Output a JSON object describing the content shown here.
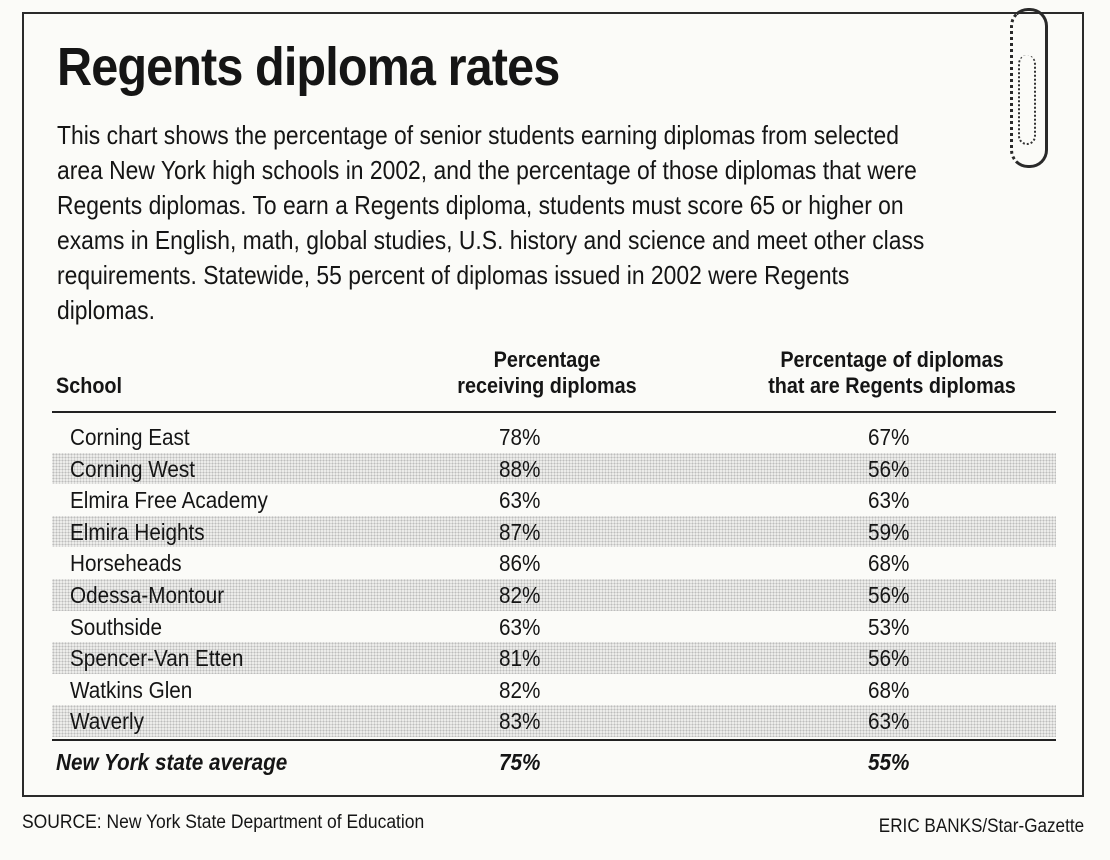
{
  "title": "Regents diploma rates",
  "intro": "This chart shows the percentage of senior students earning diplomas from selected area New York high schools in 2002, and the percentage of those diplomas that were Regents diplomas. To earn a Regents diploma, students must score 65 or higher on exams in English, math, global studies, U.S. history and science and meet other class requirements. Statewide, 55 percent of diplomas issued in 2002 were Regents diplomas.",
  "table": {
    "headers": {
      "school": "School",
      "rate_line1": "Percentage",
      "rate_line2": "receiving diplomas",
      "regents_line1": "Percentage of diplomas",
      "regents_line2": "that are Regents diplomas"
    },
    "rows": [
      {
        "school": "Corning East",
        "rate": "78%",
        "regents": "67%"
      },
      {
        "school": "Corning West",
        "rate": "88%",
        "regents": "56%"
      },
      {
        "school": "Elmira Free Academy",
        "rate": "63%",
        "regents": "63%"
      },
      {
        "school": "Elmira Heights",
        "rate": "87%",
        "regents": "59%"
      },
      {
        "school": "Horseheads",
        "rate": "86%",
        "regents": "68%"
      },
      {
        "school": "Odessa-Montour",
        "rate": "82%",
        "regents": "56%"
      },
      {
        "school": "Southside",
        "rate": "63%",
        "regents": "53%"
      },
      {
        "school": "Spencer-Van Etten",
        "rate": "81%",
        "regents": "56%"
      },
      {
        "school": "Watkins Glen",
        "rate": "82%",
        "regents": "68%"
      },
      {
        "school": "Waverly",
        "rate": "83%",
        "regents": "63%"
      }
    ],
    "average": {
      "school": "New York state average",
      "rate": "75%",
      "regents": "55%"
    }
  },
  "footer": {
    "source": "SOURCE: New York State Department of Education",
    "credit": "ERIC BANKS/Star-Gazette"
  }
}
